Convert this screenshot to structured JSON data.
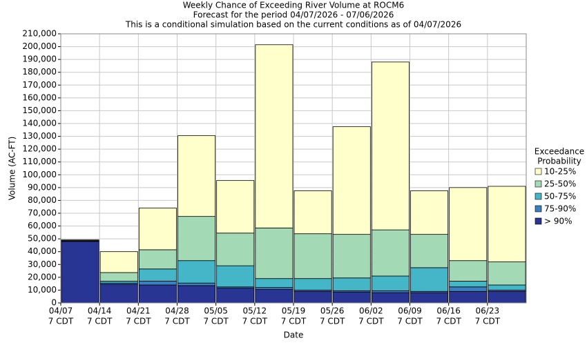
{
  "chart_data": {
    "type": "stacked-bar",
    "title": "Weekly Chance of Exceeding River Volume at ROCM6",
    "subtitle": "Forecast for the period 04/07/2026 - 07/06/2026",
    "subtitle2": "This is a conditional simulation based on the current conditions as of 04/07/2026",
    "x_label": "Date",
    "y_label": "Volume (AC-FT)",
    "legend_title": "Exceedance",
    "legend_title2": "Probability",
    "categories": [
      "04/07",
      "04/14",
      "04/21",
      "04/28",
      "05/05",
      "05/12",
      "05/19",
      "05/26",
      "06/02",
      "06/09",
      "06/16",
      "06/23"
    ],
    "category_note": "7 CDT",
    "series": [
      {
        "name": "> 90%",
        "color": "#283593",
        "values": [
          48000,
          14500,
          14000,
          13500,
          11500,
          10500,
          9000,
          8500,
          8000,
          8000,
          9000,
          9000
        ]
      },
      {
        "name": "75-90%",
        "color": "#3b7fbf",
        "values": [
          200,
          1000,
          3000,
          2000,
          1000,
          1500,
          1000,
          1000,
          1500,
          1000,
          3500,
          1000
        ]
      },
      {
        "name": "50-75%",
        "color": "#44b6c8",
        "values": [
          200,
          1500,
          9500,
          17500,
          16500,
          7000,
          9000,
          10000,
          11500,
          18500,
          4500,
          4000
        ]
      },
      {
        "name": "25-50%",
        "color": "#a3dab5",
        "values": [
          300,
          6700,
          15000,
          34500,
          25500,
          39500,
          35000,
          34000,
          36000,
          26000,
          16000,
          18000
        ]
      },
      {
        "name": "10-25%",
        "color": "#ffffcc",
        "values": [
          500,
          16300,
          32500,
          63000,
          41000,
          143000,
          33500,
          84000,
          131000,
          34000,
          57000,
          59000
        ]
      }
    ],
    "ylim": [
      0,
      210000
    ],
    "yticks": [
      0,
      {
        "value": 10000,
        "label": "10,000"
      },
      {
        "value": 20000,
        "label": "20,000"
      },
      {
        "value": 30000,
        "label": "30,000"
      },
      {
        "value": 40000,
        "label": "40,000"
      },
      {
        "value": 50000,
        "label": "50,000"
      },
      {
        "value": 60000,
        "label": "60,000"
      },
      {
        "value": 70000,
        "label": "70,000"
      },
      {
        "value": 80000,
        "label": "80,000"
      },
      {
        "value": 90000,
        "label": "90,000"
      },
      {
        "value": 100000,
        "label": "100,000"
      },
      {
        "value": 110000,
        "label": "110,000"
      },
      {
        "value": 120000,
        "label": "120,000"
      },
      {
        "value": 130000,
        "label": "130,000"
      },
      {
        "value": 140000,
        "label": "140,000"
      },
      {
        "value": 150000,
        "label": "150,000"
      },
      {
        "value": 160000,
        "label": "160,000"
      },
      {
        "value": 170000,
        "label": "170,000"
      },
      {
        "value": 180000,
        "label": "180,000"
      },
      {
        "value": 190000,
        "label": "190,000"
      },
      {
        "value": 200000,
        "label": "200,000"
      },
      {
        "value": 210000,
        "label": "210,000"
      }
    ],
    "grid": true
  }
}
